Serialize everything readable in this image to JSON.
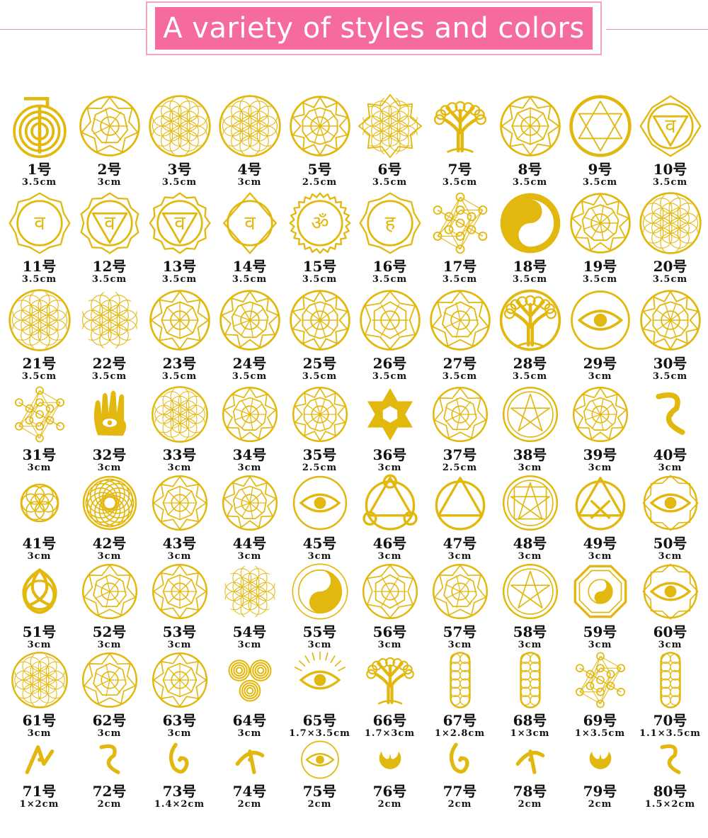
{
  "banner": {
    "title": "A variety of styles and colors"
  },
  "colors": {
    "gold": "#e2b80f",
    "gold_dark": "#c99b00",
    "pink": "#f56a9f",
    "pink_light": "#f3a6c4"
  },
  "items": [
    {
      "num": "1号",
      "size": "3.5cm",
      "icon": "choku-rei-spiral-icon"
    },
    {
      "num": "2号",
      "size": "3cm",
      "icon": "hexagon-star-icon"
    },
    {
      "num": "3号",
      "size": "3.5cm",
      "icon": "flower-of-life-icon"
    },
    {
      "num": "4号",
      "size": "3cm",
      "icon": "flower-of-life-icon"
    },
    {
      "num": "5号",
      "size": "2.5cm",
      "icon": "nine-point-star-icon"
    },
    {
      "num": "6号",
      "size": "3.5cm",
      "icon": "lotus-flower-of-life-icon"
    },
    {
      "num": "7号",
      "size": "3.5cm",
      "icon": "tree-of-life-icon"
    },
    {
      "num": "8号",
      "size": "3.5cm",
      "icon": "star-mandala-icon"
    },
    {
      "num": "9号",
      "size": "3.5cm",
      "icon": "star-of-david-circle-icon"
    },
    {
      "num": "10号",
      "size": "3.5cm",
      "icon": "root-chakra-icon"
    },
    {
      "num": "11号",
      "size": "3.5cm",
      "icon": "sacral-chakra-icon"
    },
    {
      "num": "12号",
      "size": "3.5cm",
      "icon": "solar-plexus-chakra-icon"
    },
    {
      "num": "13号",
      "size": "3.5cm",
      "icon": "heart-chakra-icon"
    },
    {
      "num": "14号",
      "size": "3.5cm",
      "icon": "third-eye-chakra-icon"
    },
    {
      "num": "15号",
      "size": "3.5cm",
      "icon": "om-crown-chakra-icon"
    },
    {
      "num": "16号",
      "size": "3.5cm",
      "icon": "throat-chakra-icon"
    },
    {
      "num": "17号",
      "size": "3.5cm",
      "icon": "metatron-cube-icon"
    },
    {
      "num": "18号",
      "size": "3.5cm",
      "icon": "yin-yang-flower-icon"
    },
    {
      "num": "19号",
      "size": "3.5cm",
      "icon": "star-flower-circle-icon"
    },
    {
      "num": "20号",
      "size": "3.5cm",
      "icon": "flower-of-life-icon"
    },
    {
      "num": "21号",
      "size": "3.5cm",
      "icon": "flower-of-life-circle-icon"
    },
    {
      "num": "22号",
      "size": "3.5cm",
      "icon": "hexagon-flower-icon"
    },
    {
      "num": "23号",
      "size": "3.5cm",
      "icon": "phoenix-swirl-icon"
    },
    {
      "num": "24号",
      "size": "3.5cm",
      "icon": "lotus-mandala-icon"
    },
    {
      "num": "25号",
      "size": "3.5cm",
      "icon": "heart-star-mandala-icon"
    },
    {
      "num": "26号",
      "size": "3.5cm",
      "icon": "petal-mandala-icon"
    },
    {
      "num": "27号",
      "size": "3.5cm",
      "icon": "om-lotus-icon"
    },
    {
      "num": "28号",
      "size": "3.5cm",
      "icon": "celtic-tree-icon"
    },
    {
      "num": "29号",
      "size": "3cm",
      "icon": "eye-of-horus-icon"
    },
    {
      "num": "30号",
      "size": "3.5cm",
      "icon": "star-mandala-icon"
    },
    {
      "num": "31号",
      "size": "3cm",
      "icon": "metatron-cube-icon"
    },
    {
      "num": "32号",
      "size": "3cm",
      "icon": "hamsa-hand-icon"
    },
    {
      "num": "33号",
      "size": "3cm",
      "icon": "flower-of-life-icon"
    },
    {
      "num": "34号",
      "size": "3cm",
      "icon": "sri-yantra-icon"
    },
    {
      "num": "35号",
      "size": "2.5cm",
      "icon": "octagon-star-icon"
    },
    {
      "num": "36号",
      "size": "3cm",
      "icon": "star-of-david-icon"
    },
    {
      "num": "37号",
      "size": "2.5cm",
      "icon": "swirl-knot-icon"
    },
    {
      "num": "38号",
      "size": "3cm",
      "icon": "pentagram-ring-icon"
    },
    {
      "num": "39号",
      "size": "3cm",
      "icon": "merkaba-star-icon"
    },
    {
      "num": "40号",
      "size": "3cm",
      "icon": "rune-symbol-icon"
    },
    {
      "num": "41号",
      "size": "3cm",
      "icon": "seed-of-life-icon"
    },
    {
      "num": "42号",
      "size": "3cm",
      "icon": "rosette-icon"
    },
    {
      "num": "43号",
      "size": "3cm",
      "icon": "sun-flower-icon"
    },
    {
      "num": "44号",
      "size": "3cm",
      "icon": "star-hexagon-icon"
    },
    {
      "num": "45号",
      "size": "3cm",
      "icon": "eye-circle-icon"
    },
    {
      "num": "46号",
      "size": "3cm",
      "icon": "triple-circle-icon"
    },
    {
      "num": "47号",
      "size": "3cm",
      "icon": "triangle-circle-icon"
    },
    {
      "num": "48号",
      "size": "3cm",
      "icon": "square-pentagram-icon"
    },
    {
      "num": "49号",
      "size": "3cm",
      "icon": "triangle-cross-icon"
    },
    {
      "num": "50号",
      "size": "3cm",
      "icon": "eye-star-icon"
    },
    {
      "num": "51号",
      "size": "3cm",
      "icon": "triquetra-icon"
    },
    {
      "num": "52号",
      "size": "3cm",
      "icon": "vegvisir-icon"
    },
    {
      "num": "53号",
      "size": "3cm",
      "icon": "om-mandala-icon"
    },
    {
      "num": "54号",
      "size": "3cm",
      "icon": "flower-cluster-icon"
    },
    {
      "num": "55号",
      "size": "3cm",
      "icon": "yin-yang-icon"
    },
    {
      "num": "56号",
      "size": "3cm",
      "icon": "lotus-circle-icon"
    },
    {
      "num": "57号",
      "size": "3cm",
      "icon": "triskelion-flower-icon"
    },
    {
      "num": "58号",
      "size": "3cm",
      "icon": "pentagram-circle-icon"
    },
    {
      "num": "59号",
      "size": "3cm",
      "icon": "bagua-icon"
    },
    {
      "num": "60号",
      "size": "3cm",
      "icon": "eye-pyramid-seal-icon"
    },
    {
      "num": "61号",
      "size": "3cm",
      "icon": "flower-of-life-icon"
    },
    {
      "num": "62号",
      "size": "3cm",
      "icon": "hexagram-seal-icon"
    },
    {
      "num": "63号",
      "size": "3cm",
      "icon": "atom-seal-icon"
    },
    {
      "num": "64号",
      "size": "3cm",
      "icon": "triple-spiral-icon"
    },
    {
      "num": "65号",
      "size": "1.7×3.5cm",
      "icon": "eye-rays-icon"
    },
    {
      "num": "66号",
      "size": "1.7×3cm",
      "icon": "tree-icon"
    },
    {
      "num": "67号",
      "size": "1×2.8cm",
      "icon": "vertical-flower-icon"
    },
    {
      "num": "68号",
      "size": "1×3cm",
      "icon": "vertical-flower-icon"
    },
    {
      "num": "69号",
      "size": "1×3.5cm",
      "icon": "vertical-metatron-icon"
    },
    {
      "num": "70号",
      "size": "1.1×3.5cm",
      "icon": "vertical-flower-icon"
    },
    {
      "num": "71号",
      "size": "1×2cm",
      "icon": "reiki-symbol-icon"
    },
    {
      "num": "72号",
      "size": "2cm",
      "icon": "reiki-symbol-icon"
    },
    {
      "num": "73号",
      "size": "1.4×2cm",
      "icon": "reiki-symbol-icon"
    },
    {
      "num": "74号",
      "size": "2cm",
      "icon": "reiki-symbol-icon"
    },
    {
      "num": "75号",
      "size": "2cm",
      "icon": "sun-eye-icon"
    },
    {
      "num": "76号",
      "size": "2cm",
      "icon": "moon-star-icon"
    },
    {
      "num": "77号",
      "size": "2cm",
      "icon": "reiki-symbol-icon"
    },
    {
      "num": "78号",
      "size": "2cm",
      "icon": "reiki-symbol-icon"
    },
    {
      "num": "79号",
      "size": "2cm",
      "icon": "crescent-symbol-icon"
    },
    {
      "num": "80号",
      "size": "1.5×2cm",
      "icon": "reiki-symbol-icon"
    }
  ]
}
